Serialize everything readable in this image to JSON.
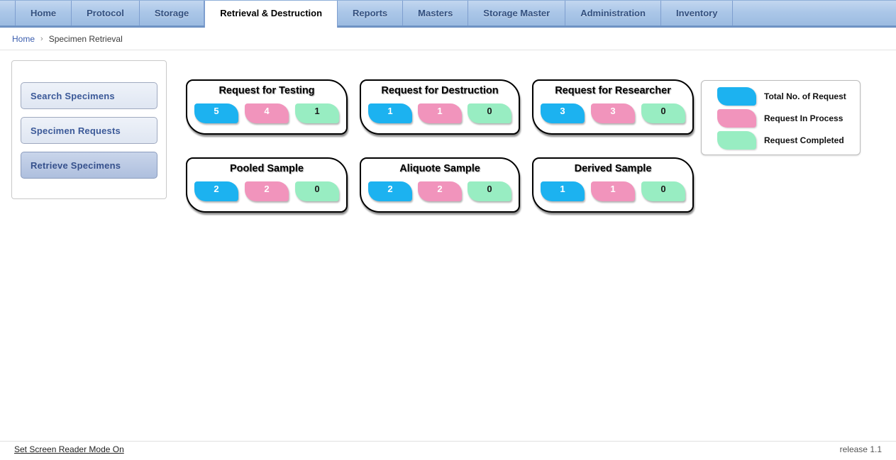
{
  "nav": {
    "tabs": [
      {
        "label": "Home",
        "active": false
      },
      {
        "label": "Protocol",
        "active": false
      },
      {
        "label": "Storage",
        "active": false
      },
      {
        "label": "Retrieval & Destruction",
        "active": true
      },
      {
        "label": "Reports",
        "active": false
      },
      {
        "label": "Masters",
        "active": false
      },
      {
        "label": "Storage Master",
        "active": false
      },
      {
        "label": "Administration",
        "active": false
      },
      {
        "label": "Inventory",
        "active": false
      }
    ]
  },
  "breadcrumb": {
    "home": "Home",
    "separator": "›",
    "current": "Specimen Retrieval"
  },
  "sidebar": {
    "items": [
      {
        "label": "Search Specimens",
        "active": false
      },
      {
        "label": "Specimen Requests",
        "active": false
      },
      {
        "label": "Retrieve Specimens",
        "active": true
      }
    ]
  },
  "cards": [
    {
      "title": "Request for Testing",
      "total": "5",
      "in_process": "4",
      "completed": "1"
    },
    {
      "title": "Request for Destruction",
      "total": "1",
      "in_process": "1",
      "completed": "0"
    },
    {
      "title": "Request for Researcher",
      "total": "3",
      "in_process": "3",
      "completed": "0"
    },
    {
      "title": "Pooled Sample",
      "total": "2",
      "in_process": "2",
      "completed": "0"
    },
    {
      "title": "Aliquote Sample",
      "total": "2",
      "in_process": "2",
      "completed": "0"
    },
    {
      "title": "Derived Sample",
      "total": "1",
      "in_process": "1",
      "completed": "0"
    }
  ],
  "legend": {
    "items": [
      {
        "key": "total",
        "label": "Total No. of Request"
      },
      {
        "key": "in_process",
        "label": "Request In Process"
      },
      {
        "key": "completed",
        "label": "Request Completed"
      }
    ]
  },
  "colors": {
    "total": "#1cb2f0",
    "in_process": "#f194bc",
    "completed": "#98edc2",
    "nav_blue": "#abc7e8"
  },
  "footer": {
    "screen_reader_link": "Set Screen Reader Mode On",
    "release": "release 1.1"
  }
}
